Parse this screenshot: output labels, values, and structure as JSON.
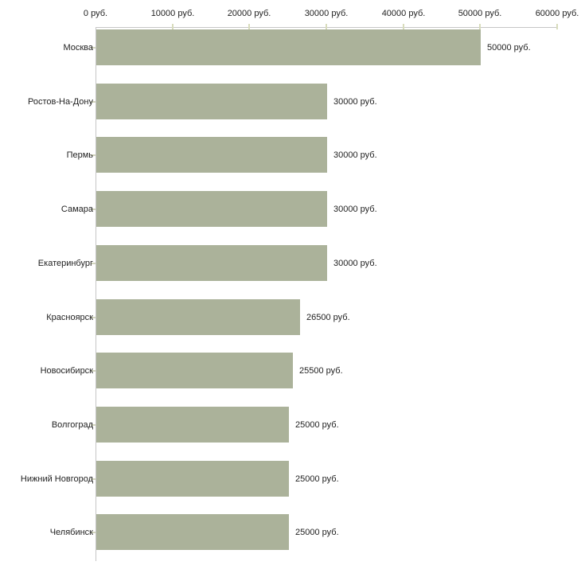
{
  "chart_data": {
    "type": "bar",
    "orientation": "horizontal",
    "categories": [
      "Москва",
      "Ростов-На-Дону",
      "Пермь",
      "Самара",
      "Екатеринбург",
      "Красноярск",
      "Новосибирск",
      "Волгоград",
      "Нижний Новгород",
      "Челябинск"
    ],
    "values": [
      50000,
      30000,
      30000,
      30000,
      30000,
      26500,
      25500,
      25000,
      25000,
      25000
    ],
    "value_labels": [
      "50000 руб.",
      "30000 руб.",
      "30000 руб.",
      "30000 руб.",
      "30000 руб.",
      "26500 руб.",
      "25500 руб.",
      "25000 руб.",
      "25000 руб.",
      "25000 руб."
    ],
    "x_axis": {
      "position": "top",
      "min": 0,
      "max": 60000,
      "tick_step": 10000,
      "tick_labels": [
        "0 руб.",
        "10000 руб.",
        "20000 руб.",
        "30000 руб.",
        "40000 руб.",
        "50000 руб.",
        "60000 руб."
      ]
    },
    "grid": false,
    "legend": false,
    "colors": {
      "bar": "#abb29a",
      "axis": "#c6c6c6",
      "tick": "#d8dcbc",
      "y_tick": "#d2d5be",
      "text": "#222222",
      "background": "#ffffff"
    }
  }
}
